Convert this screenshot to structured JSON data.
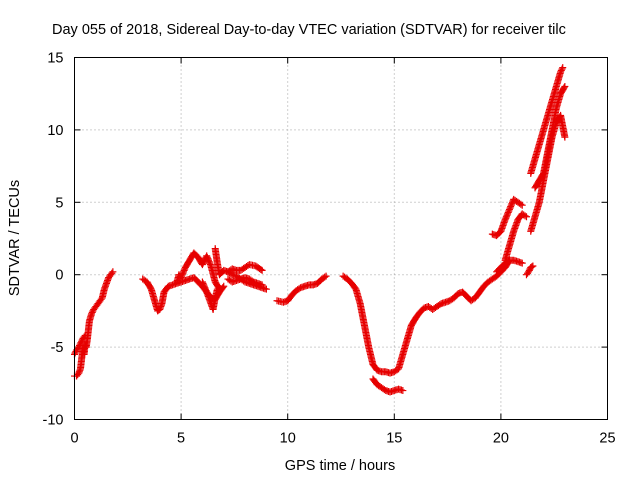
{
  "chart_data": {
    "type": "scatter",
    "title": "Day 055 of 2018, Sidereal Day-to-day VTEC variation (SDTVAR) for receiver tilc",
    "xlabel": "GPS time / hours",
    "ylabel": "SDTVAR / TECUs",
    "xlim": [
      0,
      25
    ],
    "ylim": [
      -10,
      15
    ],
    "xticks": [
      0,
      5,
      10,
      15,
      20,
      25
    ],
    "yticks": [
      -10,
      -5,
      0,
      5,
      10,
      15
    ],
    "grid": true,
    "marker": "+",
    "color": "#e60000",
    "series": [
      {
        "x": [
          0.0,
          0.1,
          0.2,
          0.28,
          0.32,
          0.36,
          0.4,
          0.45,
          0.5,
          0.55,
          0.6,
          0.7,
          0.8,
          0.9,
          1.0,
          1.1,
          1.2,
          1.3,
          1.4,
          1.5,
          1.6,
          1.7,
          1.8
        ],
        "y": [
          -7.0,
          -7.0,
          -6.8,
          -6.5,
          -6.0,
          -5.5,
          -5.0,
          -5.5,
          -4.8,
          -5.0,
          -4.5,
          -3.2,
          -2.7,
          -2.4,
          -2.2,
          -2.0,
          -1.8,
          -1.6,
          -1.0,
          -0.6,
          -0.2,
          0.0,
          0.2
        ]
      },
      {
        "x": [
          0.0,
          0.1,
          0.2,
          0.3,
          0.4,
          0.5
        ],
        "y": [
          -5.5,
          -5.2,
          -5.0,
          -4.7,
          -4.4,
          -4.2
        ]
      },
      {
        "x": [
          3.2,
          3.4,
          3.6,
          3.8,
          3.9,
          4.0,
          4.1,
          4.2,
          4.4,
          4.6,
          4.8,
          5.0,
          5.2,
          5.4,
          5.6,
          5.8,
          6.0,
          6.2,
          6.4,
          6.6,
          6.8,
          7.0
        ],
        "y": [
          -0.3,
          -0.5,
          -1.0,
          -2.0,
          -2.5,
          -2.4,
          -2.0,
          -1.2,
          -0.8,
          -0.7,
          -0.6,
          -0.5,
          -0.4,
          -0.3,
          -0.2,
          -0.5,
          -0.8,
          -1.2,
          -1.6,
          -1.7,
          -1.2,
          -0.8
        ]
      },
      {
        "x": [
          4.8,
          4.9,
          5.0,
          5.2,
          5.4,
          5.6,
          5.8,
          6.0,
          6.2,
          6.4,
          6.6,
          6.8
        ],
        "y": [
          -0.5,
          0.0,
          -0.2,
          0.5,
          1.0,
          1.5,
          1.2,
          0.7,
          1.3,
          0.6,
          -0.5,
          -1.0
        ]
      },
      {
        "x": [
          6.0,
          6.2,
          6.4,
          6.5,
          6.6,
          6.7
        ],
        "y": [
          -0.5,
          -1.2,
          -2.0,
          -2.4,
          -1.6,
          -1.0
        ]
      },
      {
        "x": [
          6.6,
          6.7,
          6.8,
          7.0,
          7.2,
          7.4,
          7.6,
          7.8,
          8.0,
          8.2,
          8.4,
          8.6,
          8.8,
          9.0
        ],
        "y": [
          1.8,
          0.8,
          0.0,
          0.3,
          0.2,
          0.0,
          -0.1,
          -0.3,
          -0.5,
          -0.6,
          -0.7,
          -0.8,
          -0.9,
          -1.0
        ]
      },
      {
        "x": [
          7.2,
          7.4,
          7.6,
          7.8,
          8.0,
          8.2,
          8.4,
          8.6,
          8.8
        ],
        "y": [
          -0.3,
          -0.5,
          -0.4,
          -0.3,
          -0.2,
          -0.3,
          -0.5,
          -0.6,
          -0.7
        ]
      },
      {
        "x": [
          7.2,
          7.4,
          7.6,
          7.8,
          8.0,
          8.2,
          8.5,
          8.8
        ],
        "y": [
          0.2,
          0.4,
          0.3,
          0.3,
          0.5,
          0.7,
          0.6,
          0.3
        ]
      },
      {
        "x": [
          9.5,
          9.8,
          10.0,
          10.2,
          10.4,
          10.6,
          10.8,
          11.0,
          11.2,
          11.4,
          11.6,
          11.8
        ],
        "y": [
          -1.8,
          -1.9,
          -1.8,
          -1.4,
          -1.1,
          -0.9,
          -0.8,
          -0.7,
          -0.7,
          -0.6,
          -0.3,
          -0.1
        ]
      },
      {
        "x": [
          12.6,
          12.8,
          13.0,
          13.2,
          13.4,
          13.6,
          13.8,
          14.0,
          14.2,
          14.4,
          14.6,
          14.8,
          15.0,
          15.2,
          15.4,
          15.6,
          15.8,
          16.0,
          16.2,
          16.4,
          16.6,
          16.8,
          17.0,
          17.2,
          17.4,
          17.6,
          17.8,
          18.0,
          18.2,
          18.4,
          18.6,
          18.8,
          19.0,
          19.2,
          19.4,
          19.6,
          19.8,
          20.0,
          20.2,
          20.4
        ],
        "y": [
          -0.1,
          -0.3,
          -0.6,
          -1.0,
          -2.0,
          -3.5,
          -5.0,
          -6.2,
          -6.6,
          -6.7,
          -6.7,
          -6.8,
          -6.7,
          -6.5,
          -5.5,
          -4.5,
          -3.5,
          -3.0,
          -2.6,
          -2.3,
          -2.2,
          -2.4,
          -2.2,
          -2.0,
          -1.9,
          -1.8,
          -1.6,
          -1.3,
          -1.2,
          -1.5,
          -1.8,
          -1.6,
          -1.2,
          -0.8,
          -0.5,
          -0.3,
          -0.1,
          0.2,
          0.5,
          1.0
        ]
      },
      {
        "x": [
          14.0,
          14.2,
          14.4,
          14.6,
          14.8,
          15.0,
          15.2,
          15.4
        ],
        "y": [
          -7.2,
          -7.6,
          -7.8,
          -8.0,
          -8.1,
          -8.0,
          -7.9,
          -8.0
        ]
      },
      {
        "x": [
          19.6,
          19.8,
          20.0,
          20.2,
          20.4,
          20.6,
          20.8,
          21.0
        ],
        "y": [
          2.8,
          2.7,
          3.0,
          3.8,
          4.5,
          5.2,
          5.0,
          4.8
        ]
      },
      {
        "x": [
          19.8,
          20.0,
          20.2,
          20.4,
          20.6,
          20.8,
          21.0
        ],
        "y": [
          0.2,
          0.5,
          0.8,
          1.0,
          1.0,
          0.9,
          0.8
        ]
      },
      {
        "x": [
          20.2,
          20.4,
          20.6,
          20.8,
          21.0,
          21.2
        ],
        "y": [
          1.0,
          2.0,
          3.0,
          3.8,
          4.2,
          4.0
        ]
      },
      {
        "x": [
          21.2,
          21.3,
          21.4,
          21.5
        ],
        "y": [
          0.0,
          0.2,
          0.5,
          0.6
        ]
      },
      {
        "x": [
          21.4,
          21.6,
          21.8,
          22.0,
          22.2,
          22.4,
          22.6,
          22.8,
          23.0
        ],
        "y": [
          3.0,
          4.0,
          5.0,
          6.5,
          8.0,
          9.5,
          10.5,
          11.0,
          9.5
        ]
      },
      {
        "x": [
          21.4,
          21.6,
          21.8,
          22.0,
          22.2,
          22.4,
          22.6,
          22.8,
          22.9
        ],
        "y": [
          7.0,
          8.0,
          9.0,
          10.0,
          11.0,
          12.0,
          13.0,
          14.0,
          14.3
        ]
      },
      {
        "x": [
          21.6,
          21.8,
          22.0,
          22.2,
          22.4,
          22.6,
          22.8,
          23.0
        ],
        "y": [
          6.0,
          6.5,
          7.0,
          8.5,
          10.0,
          11.5,
          12.5,
          13.0
        ]
      }
    ]
  }
}
